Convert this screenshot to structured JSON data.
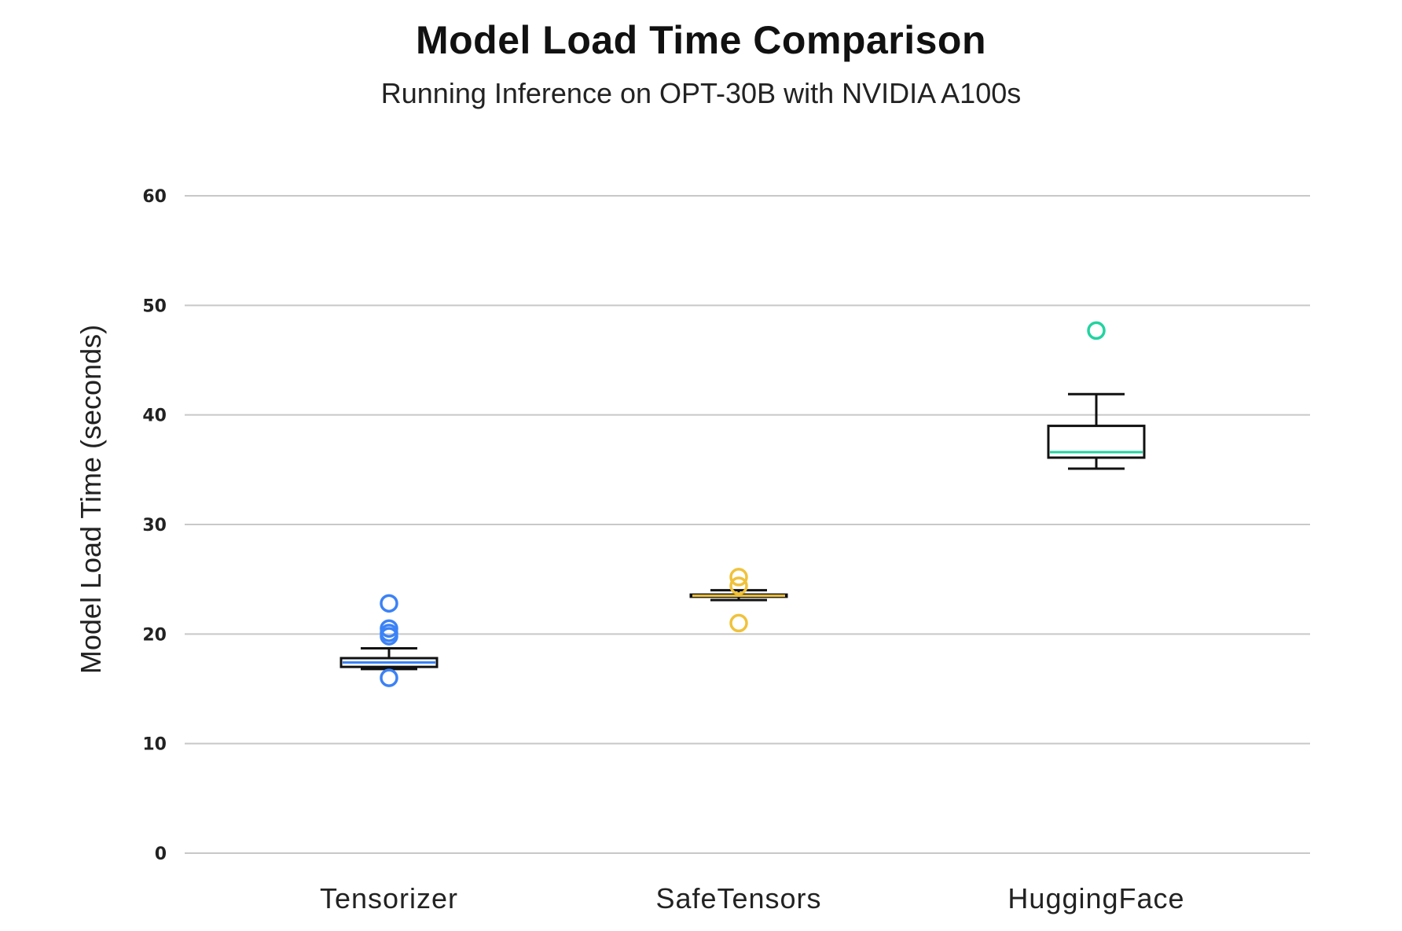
{
  "chart_data": {
    "type": "box",
    "title": "Model Load Time Comparison",
    "subtitle": "Running Inference on OPT-30B with NVIDIA A100s",
    "xlabel": "",
    "ylabel": "Model Load Time (seconds)",
    "ylim": [
      0,
      60
    ],
    "yticks": [
      0,
      10,
      20,
      30,
      40,
      50,
      60
    ],
    "grid": true,
    "categories": [
      "Tensorizer",
      "SafeTensors",
      "HuggingFace"
    ],
    "boxes": [
      {
        "category": "Tensorizer",
        "color": "#3b82f6",
        "whisker_low": 16.8,
        "q1": 17.0,
        "median": 17.4,
        "q3": 17.8,
        "whisker_high": 18.7,
        "outliers": [
          22.8,
          20.5,
          20.1,
          19.8,
          16.0
        ]
      },
      {
        "category": "SafeTensors",
        "color": "#f0c23b",
        "whisker_low": 23.1,
        "q1": 23.4,
        "median": 23.5,
        "q3": 23.6,
        "whisker_high": 24.0,
        "outliers": [
          25.2,
          24.4,
          21.0
        ]
      },
      {
        "category": "HuggingFace",
        "color": "#22d3a0",
        "whisker_low": 35.1,
        "q1": 36.1,
        "median": 36.6,
        "q3": 39.0,
        "whisker_high": 41.9,
        "outliers": [
          47.7
        ]
      }
    ]
  }
}
